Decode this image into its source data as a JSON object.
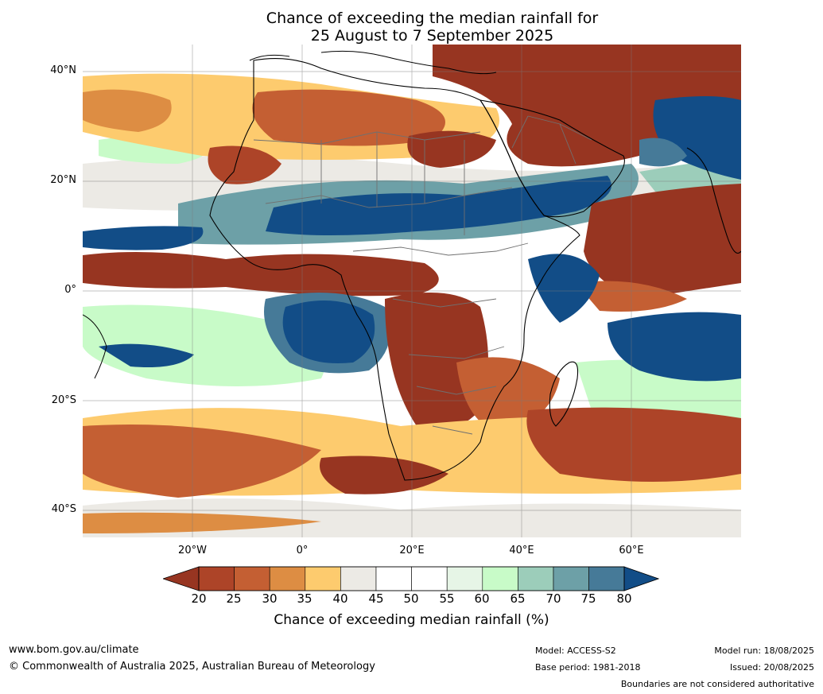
{
  "title": {
    "line1": "Chance of exceeding the median rainfall for",
    "line2": "25 August to 7 September 2025"
  },
  "map": {
    "lat_labels": [
      "40°N",
      "20°N",
      "0°",
      "20°S",
      "40°S"
    ],
    "lon_labels": [
      "20°W",
      "0°",
      "20°E",
      "40°E",
      "60°E"
    ],
    "extent": {
      "lon": [
        -40,
        80
      ],
      "lat": [
        -45,
        45
      ]
    },
    "gridlines": true
  },
  "colorbar": {
    "label": "Chance of exceeding median rainfall (%)",
    "ticks": [
      "20",
      "25",
      "30",
      "35",
      "40",
      "45",
      "50",
      "55",
      "60",
      "65",
      "70",
      "75",
      "80"
    ],
    "colors": [
      "#973521",
      "#ad4428",
      "#c45f33",
      "#dd8d43",
      "#fdcb6e",
      "#eceae5",
      "#ffffff",
      "#ffffff",
      "#e6f5e6",
      "#c8fbc8",
      "#9ccdba",
      "#6da0a7",
      "#467a98",
      "#124d87"
    ]
  },
  "footer": {
    "website": "www.bom.gov.au/climate",
    "copyright": "© Commonwealth of Australia 2025, Australian Bureau of Meteorology",
    "model": "Model: ACCESS-S2",
    "base_period": "Base period: 1981-2018",
    "model_run": "Model run: 18/08/2025",
    "issued": "Issued: 20/08/2025",
    "disclaimer": "Boundaries are not considered authoritative"
  }
}
